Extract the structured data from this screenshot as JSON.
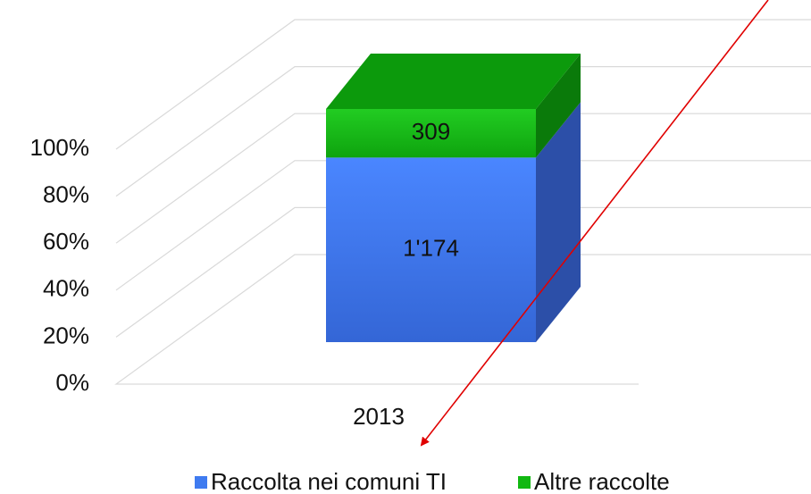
{
  "chart_data": {
    "type": "bar",
    "stacking": "percent",
    "categories": [
      "2013"
    ],
    "series": [
      {
        "name": "Raccolta nei comuni TI",
        "color": "#3f7bf0",
        "values": [
          1174
        ],
        "value_labels": [
          "1'174"
        ]
      },
      {
        "name": "Altre raccolte",
        "color": "#12b812",
        "values": [
          309
        ],
        "value_labels": [
          "309"
        ]
      }
    ],
    "ylim": [
      0,
      100
    ],
    "yticks": [
      {
        "value": 0,
        "label": "0%"
      },
      {
        "value": 20,
        "label": "20%"
      },
      {
        "value": 40,
        "label": "40%"
      },
      {
        "value": 60,
        "label": "60%"
      },
      {
        "value": 80,
        "label": "80%"
      },
      {
        "value": 100,
        "label": "100%"
      }
    ],
    "grid": true,
    "legend": "bottom"
  }
}
